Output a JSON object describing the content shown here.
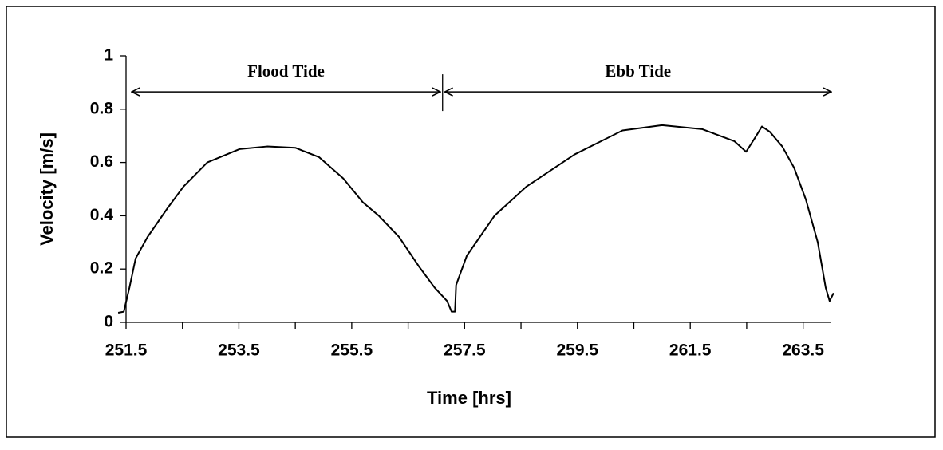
{
  "chart_data": {
    "type": "line",
    "xlabel": "Time [hrs]",
    "ylabel": "Velocity [m/s]",
    "xlim": [
      251.5,
      264.0
    ],
    "xticks": [
      251.5,
      253.5,
      255.5,
      257.5,
      259.5,
      261.5,
      263.5
    ],
    "ylim": [
      0,
      1
    ],
    "yticks": [
      0,
      0.2,
      0.4,
      0.6,
      0.8,
      1
    ],
    "grid": false,
    "series": [
      {
        "color": "#000000",
        "x": [
          251.36,
          251.46,
          251.56,
          251.67,
          251.88,
          252.24,
          252.52,
          252.94,
          253.51,
          254.0,
          254.5,
          254.92,
          255.35,
          255.7,
          255.98,
          256.34,
          256.69,
          256.97,
          257.19,
          257.27,
          257.33,
          257.35,
          257.54,
          258.03,
          258.6,
          259.45,
          260.3,
          261.0,
          261.71,
          262.28,
          262.49,
          262.67,
          262.77,
          262.91,
          263.13,
          263.34,
          263.55,
          263.76,
          263.9,
          263.97,
          264.04
        ],
        "values": [
          0.036,
          0.04,
          0.13,
          0.24,
          0.32,
          0.43,
          0.51,
          0.6,
          0.65,
          0.66,
          0.655,
          0.62,
          0.54,
          0.45,
          0.4,
          0.32,
          0.21,
          0.13,
          0.08,
          0.04,
          0.04,
          0.14,
          0.25,
          0.4,
          0.51,
          0.63,
          0.72,
          0.74,
          0.725,
          0.68,
          0.64,
          0.7,
          0.735,
          0.715,
          0.66,
          0.58,
          0.46,
          0.3,
          0.13,
          0.08,
          0.11
        ]
      }
    ],
    "annotations": [
      {
        "text": "Flood Tide",
        "x": [
          251.6,
          257.07
        ],
        "y": 0.865
      },
      {
        "text": "Ebb Tide",
        "x": [
          257.15,
          264.0
        ],
        "y": 0.865
      }
    ]
  }
}
